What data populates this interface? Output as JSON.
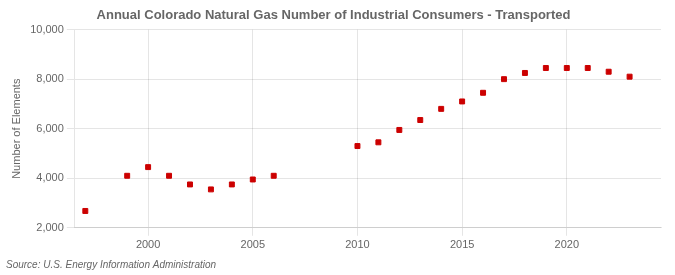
{
  "chart_data": {
    "type": "scatter",
    "title": "Annual Colorado Natural Gas Number of Industrial Consumers - Transported",
    "ylabel": "Number of Elements",
    "annotations": [
      "Source: U.S. Energy Information Administration"
    ],
    "x": [
      1997,
      1999,
      2000,
      2001,
      2002,
      2003,
      2004,
      2005,
      2006,
      2010,
      2011,
      2012,
      2013,
      2014,
      2015,
      2016,
      2017,
      2018,
      2019,
      2020,
      2021,
      2022,
      2023
    ],
    "values": [
      2680,
      4100,
      4450,
      4100,
      3750,
      3550,
      3750,
      3950,
      4100,
      5300,
      5450,
      5950,
      6350,
      6800,
      7100,
      7450,
      8000,
      8250,
      8450,
      8450,
      8450,
      8300,
      8100
    ],
    "color": "#cc0000",
    "marker": "square",
    "xlim": [
      1996.5,
      2024.5
    ],
    "xticks": [
      2000,
      2005,
      2010,
      2015,
      2020
    ],
    "ylim": [
      2000,
      10000
    ],
    "yticks": [
      {
        "value": 2000,
        "label": "2,000"
      },
      {
        "value": 4000,
        "label": "4,000"
      },
      {
        "value": 6000,
        "label": "6,000"
      },
      {
        "value": 8000,
        "label": "8,000"
      },
      {
        "value": 10000,
        "label": "10,000"
      }
    ],
    "grid": true
  }
}
